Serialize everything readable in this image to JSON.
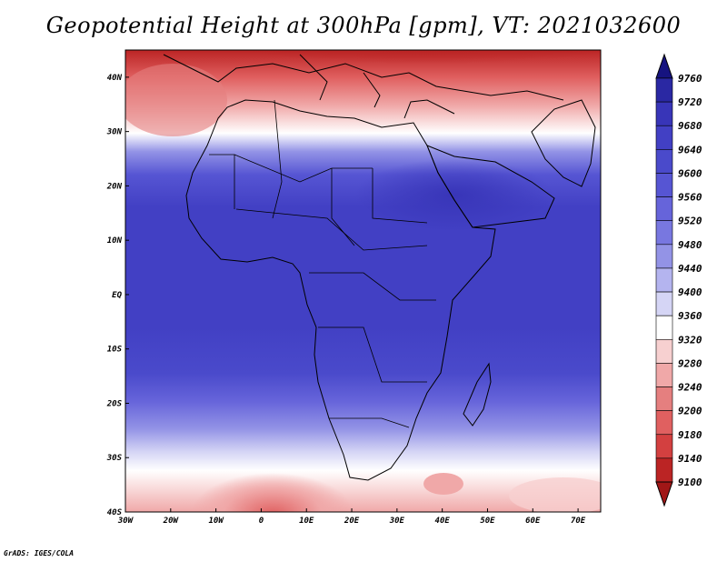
{
  "title": "Geopotential Height at 300hPa [gpm], VT: 2021032600",
  "credit": "GrADS: IGES/COLA",
  "x_ticks": [
    "30W",
    "20W",
    "10W",
    "0",
    "10E",
    "20E",
    "30E",
    "40E",
    "50E",
    "60E",
    "70E"
  ],
  "y_ticks": [
    "40N",
    "30N",
    "20N",
    "10N",
    "EQ",
    "10S",
    "20S",
    "30S",
    "40S"
  ],
  "colorbar": {
    "labels": [
      "9760",
      "9720",
      "9680",
      "9640",
      "9600",
      "9560",
      "9520",
      "9480",
      "9440",
      "9400",
      "9360",
      "9320",
      "9280",
      "9240",
      "9200",
      "9180",
      "9140",
      "9100"
    ],
    "colors": [
      "#161380",
      "#2a28a3",
      "#3835b8",
      "#4240c4",
      "#4a4acb",
      "#5655d3",
      "#6664da",
      "#7877e0",
      "#9393e6",
      "#b4b4ef",
      "#d5d5f5",
      "#ffffff",
      "#f7d0d0",
      "#f0a8a8",
      "#e57f7f",
      "#e06060",
      "#d34040",
      "#bb2424",
      "#a11717"
    ]
  },
  "chart_data": {
    "type": "heatmap",
    "title": "Geopotential Height at 300hPa [gpm], VT: 2021032600",
    "xlim": [
      -30,
      75
    ],
    "ylim": [
      -40,
      45
    ],
    "units": "gpm",
    "contour_levels": [
      9100,
      9140,
      9180,
      9200,
      9240,
      9280,
      9320,
      9360,
      9400,
      9440,
      9480,
      9520,
      9560,
      9600,
      9640,
      9680,
      9720,
      9760
    ]
  }
}
